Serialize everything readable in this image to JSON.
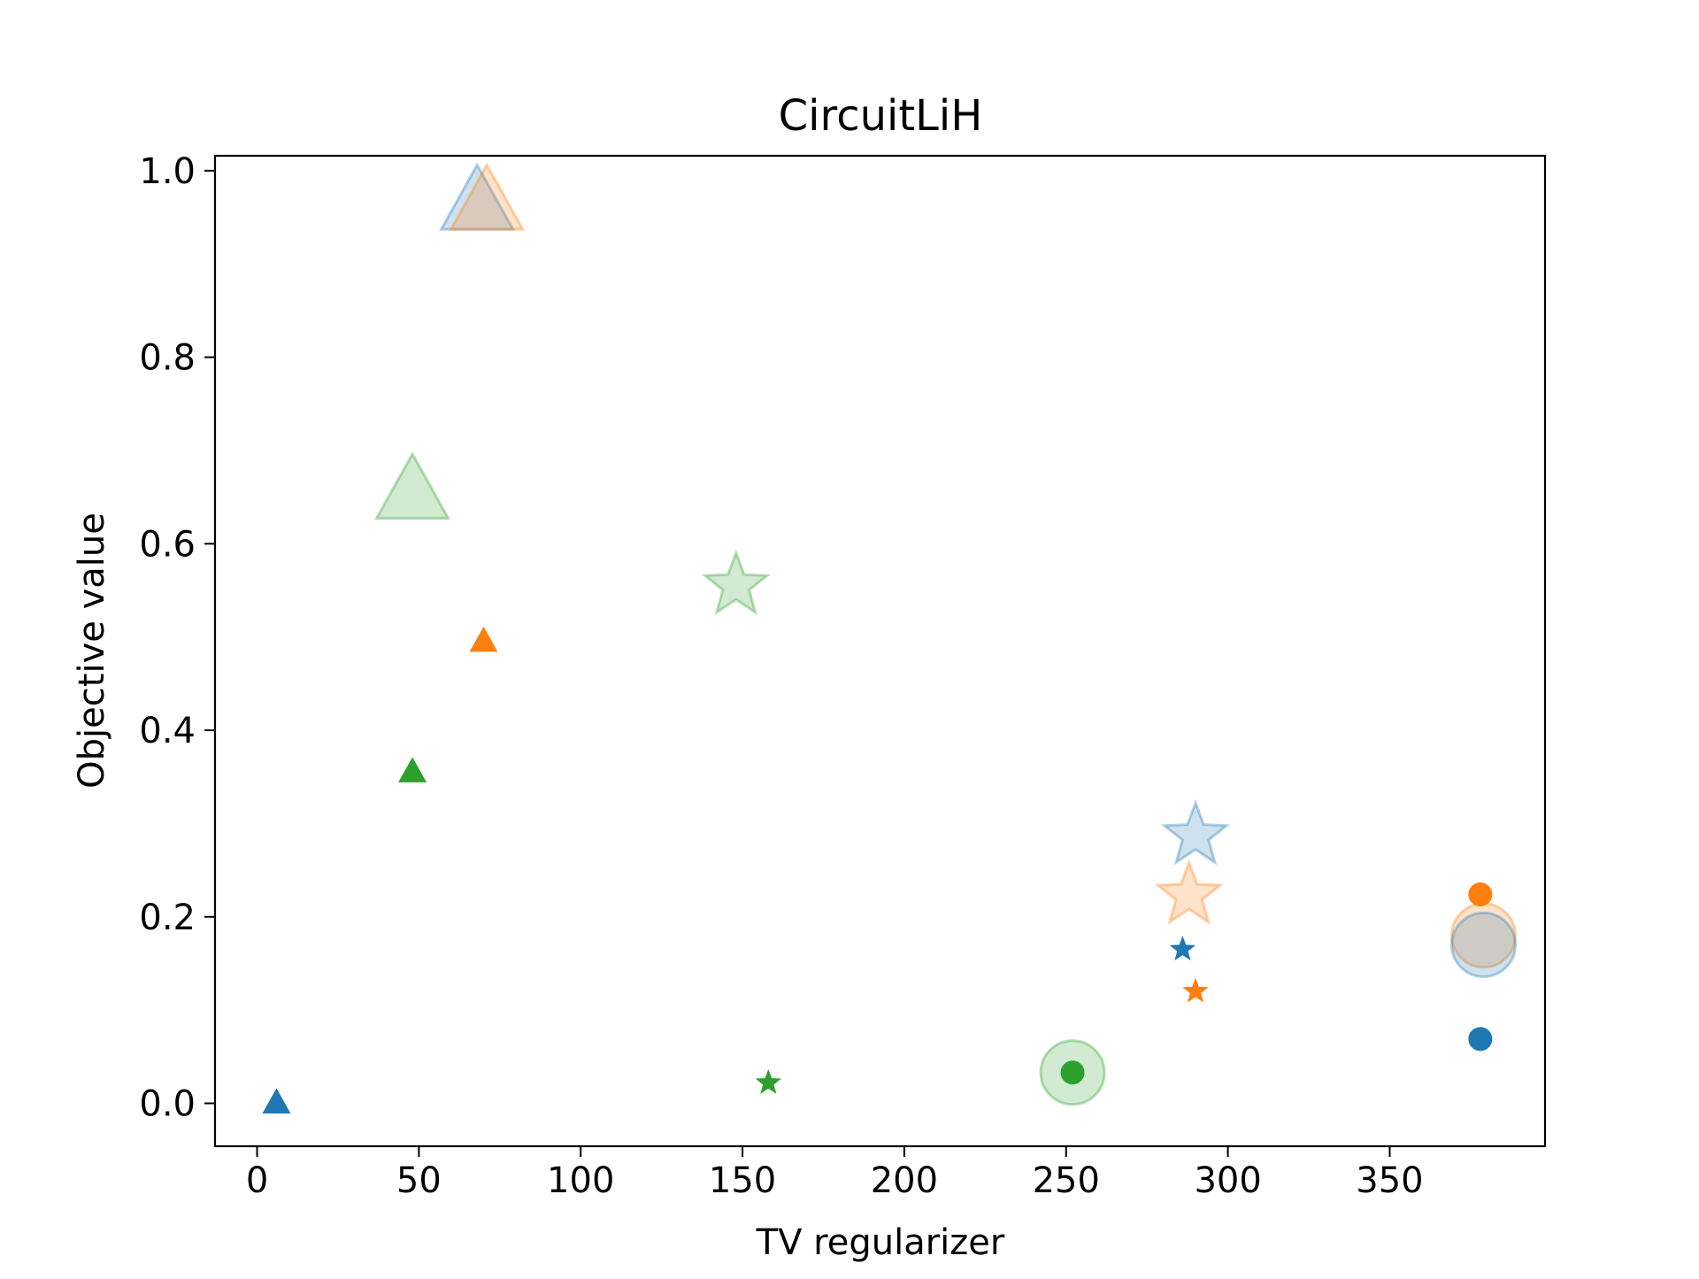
{
  "chart_data": {
    "type": "scatter",
    "title": "CircuitLiH",
    "xlabel": "TV regularizer",
    "ylabel": "Objective value",
    "xlim": [
      -13,
      398
    ],
    "ylim": [
      -0.046,
      1.016
    ],
    "xticks": [
      0,
      50,
      100,
      150,
      200,
      250,
      300,
      350
    ],
    "yticks": [
      0.0,
      0.2,
      0.4,
      0.6,
      0.8,
      1.0
    ],
    "xtick_labels": [
      "0",
      "50",
      "100",
      "150",
      "200",
      "250",
      "300",
      "350"
    ],
    "ytick_labels": [
      "0.0",
      "0.2",
      "0.4",
      "0.6",
      "0.8",
      "1.0"
    ],
    "grid": false,
    "legend": null,
    "colors": {
      "blue": "#1f77b4",
      "orange": "#ff7f0e",
      "green": "#2ca02c"
    },
    "points": [
      {
        "x": 68,
        "y": 0.965,
        "marker": "triangle",
        "color": "blue",
        "size": "large",
        "alpha": 0.22
      },
      {
        "x": 71,
        "y": 0.965,
        "marker": "triangle",
        "color": "orange",
        "size": "large",
        "alpha": 0.22
      },
      {
        "x": 48,
        "y": 0.655,
        "marker": "triangle",
        "color": "green",
        "size": "large",
        "alpha": 0.22
      },
      {
        "x": 148,
        "y": 0.555,
        "marker": "star",
        "color": "green",
        "size": "large",
        "alpha": 0.22
      },
      {
        "x": 290,
        "y": 0.287,
        "marker": "star",
        "color": "blue",
        "size": "large",
        "alpha": 0.22
      },
      {
        "x": 288,
        "y": 0.223,
        "marker": "star",
        "color": "orange",
        "size": "large",
        "alpha": 0.22
      },
      {
        "x": 379,
        "y": 0.18,
        "marker": "circle",
        "color": "orange",
        "size": "large",
        "alpha": 0.22
      },
      {
        "x": 379,
        "y": 0.17,
        "marker": "circle",
        "color": "blue",
        "size": "large",
        "alpha": 0.22
      },
      {
        "x": 252,
        "y": 0.033,
        "marker": "circle",
        "color": "green",
        "size": "large",
        "alpha": 0.22
      },
      {
        "x": 6,
        "y": 0.0,
        "marker": "triangle",
        "color": "blue",
        "size": "small",
        "alpha": 1
      },
      {
        "x": 70,
        "y": 0.495,
        "marker": "triangle",
        "color": "orange",
        "size": "small",
        "alpha": 1
      },
      {
        "x": 48,
        "y": 0.355,
        "marker": "triangle",
        "color": "green",
        "size": "small",
        "alpha": 1
      },
      {
        "x": 158,
        "y": 0.022,
        "marker": "star",
        "color": "green",
        "size": "small",
        "alpha": 1
      },
      {
        "x": 252,
        "y": 0.033,
        "marker": "circle",
        "color": "green",
        "size": "small",
        "alpha": 1
      },
      {
        "x": 286,
        "y": 0.165,
        "marker": "star",
        "color": "blue",
        "size": "small",
        "alpha": 1
      },
      {
        "x": 290,
        "y": 0.12,
        "marker": "star",
        "color": "orange",
        "size": "small",
        "alpha": 1
      },
      {
        "x": 378,
        "y": 0.224,
        "marker": "circle",
        "color": "orange",
        "size": "small",
        "alpha": 1
      },
      {
        "x": 378,
        "y": 0.069,
        "marker": "circle",
        "color": "blue",
        "size": "small",
        "alpha": 1
      }
    ]
  }
}
